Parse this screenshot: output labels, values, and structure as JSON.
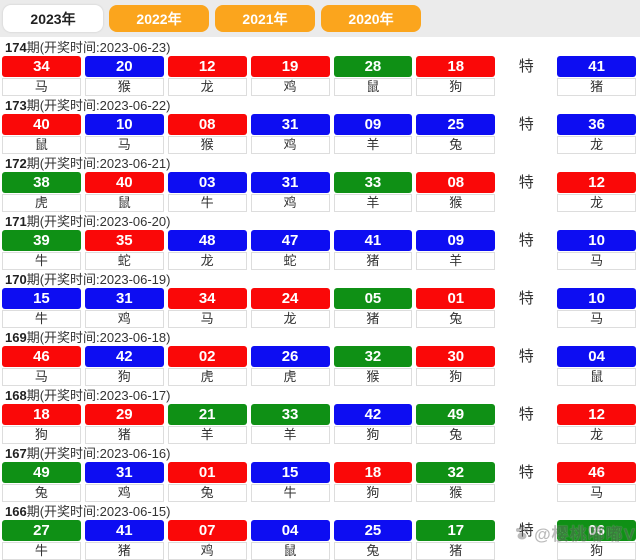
{
  "tabs": [
    {
      "label": "2023年",
      "active": true
    },
    {
      "label": "2022年",
      "active": false
    },
    {
      "label": "2021年",
      "active": false
    },
    {
      "label": "2020年",
      "active": false
    }
  ],
  "labels": {
    "special": "特"
  },
  "watermark": {
    "icon": "paw-icon",
    "text": "@樱桃嘟嘟V"
  },
  "theme": {
    "red": "#fa0808",
    "blue": "#0d0df2",
    "green": "#0f9015",
    "tab_orange": "#fba51d",
    "strip_bg": "#ebebeb"
  },
  "draws": [
    {
      "period": "174",
      "info": "期(开奖时间:2023-06-23)",
      "numbers": [
        {
          "value": "34",
          "color": "red",
          "zodiac": "马"
        },
        {
          "value": "20",
          "color": "blue",
          "zodiac": "猴"
        },
        {
          "value": "12",
          "color": "red",
          "zodiac": "龙"
        },
        {
          "value": "19",
          "color": "red",
          "zodiac": "鸡"
        },
        {
          "value": "28",
          "color": "green",
          "zodiac": "鼠"
        },
        {
          "value": "18",
          "color": "red",
          "zodiac": "狗"
        }
      ],
      "special": {
        "value": "41",
        "color": "blue",
        "zodiac": "猪"
      }
    },
    {
      "period": "173",
      "info": "期(开奖时间:2023-06-22)",
      "numbers": [
        {
          "value": "40",
          "color": "red",
          "zodiac": "鼠"
        },
        {
          "value": "10",
          "color": "blue",
          "zodiac": "马"
        },
        {
          "value": "08",
          "color": "red",
          "zodiac": "猴"
        },
        {
          "value": "31",
          "color": "blue",
          "zodiac": "鸡"
        },
        {
          "value": "09",
          "color": "blue",
          "zodiac": "羊"
        },
        {
          "value": "25",
          "color": "blue",
          "zodiac": "兔"
        }
      ],
      "special": {
        "value": "36",
        "color": "blue",
        "zodiac": "龙"
      }
    },
    {
      "period": "172",
      "info": "期(开奖时间:2023-06-21)",
      "numbers": [
        {
          "value": "38",
          "color": "green",
          "zodiac": "虎"
        },
        {
          "value": "40",
          "color": "red",
          "zodiac": "鼠"
        },
        {
          "value": "03",
          "color": "blue",
          "zodiac": "牛"
        },
        {
          "value": "31",
          "color": "blue",
          "zodiac": "鸡"
        },
        {
          "value": "33",
          "color": "green",
          "zodiac": "羊"
        },
        {
          "value": "08",
          "color": "red",
          "zodiac": "猴"
        }
      ],
      "special": {
        "value": "12",
        "color": "red",
        "zodiac": "龙"
      }
    },
    {
      "period": "171",
      "info": "期(开奖时间:2023-06-20)",
      "numbers": [
        {
          "value": "39",
          "color": "green",
          "zodiac": "牛"
        },
        {
          "value": "35",
          "color": "red",
          "zodiac": "蛇"
        },
        {
          "value": "48",
          "color": "blue",
          "zodiac": "龙"
        },
        {
          "value": "47",
          "color": "blue",
          "zodiac": "蛇"
        },
        {
          "value": "41",
          "color": "blue",
          "zodiac": "猪"
        },
        {
          "value": "09",
          "color": "blue",
          "zodiac": "羊"
        }
      ],
      "special": {
        "value": "10",
        "color": "blue",
        "zodiac": "马"
      }
    },
    {
      "period": "170",
      "info": "期(开奖时间:2023-06-19)",
      "numbers": [
        {
          "value": "15",
          "color": "blue",
          "zodiac": "牛"
        },
        {
          "value": "31",
          "color": "blue",
          "zodiac": "鸡"
        },
        {
          "value": "34",
          "color": "red",
          "zodiac": "马"
        },
        {
          "value": "24",
          "color": "red",
          "zodiac": "龙"
        },
        {
          "value": "05",
          "color": "green",
          "zodiac": "猪"
        },
        {
          "value": "01",
          "color": "red",
          "zodiac": "兔"
        }
      ],
      "special": {
        "value": "10",
        "color": "blue",
        "zodiac": "马"
      }
    },
    {
      "period": "169",
      "info": "期(开奖时间:2023-06-18)",
      "numbers": [
        {
          "value": "46",
          "color": "red",
          "zodiac": "马"
        },
        {
          "value": "42",
          "color": "blue",
          "zodiac": "狗"
        },
        {
          "value": "02",
          "color": "red",
          "zodiac": "虎"
        },
        {
          "value": "26",
          "color": "blue",
          "zodiac": "虎"
        },
        {
          "value": "32",
          "color": "green",
          "zodiac": "猴"
        },
        {
          "value": "30",
          "color": "red",
          "zodiac": "狗"
        }
      ],
      "special": {
        "value": "04",
        "color": "blue",
        "zodiac": "鼠"
      }
    },
    {
      "period": "168",
      "info": "期(开奖时间:2023-06-17)",
      "numbers": [
        {
          "value": "18",
          "color": "red",
          "zodiac": "狗"
        },
        {
          "value": "29",
          "color": "red",
          "zodiac": "猪"
        },
        {
          "value": "21",
          "color": "green",
          "zodiac": "羊"
        },
        {
          "value": "33",
          "color": "green",
          "zodiac": "羊"
        },
        {
          "value": "42",
          "color": "blue",
          "zodiac": "狗"
        },
        {
          "value": "49",
          "color": "green",
          "zodiac": "兔"
        }
      ],
      "special": {
        "value": "12",
        "color": "red",
        "zodiac": "龙"
      }
    },
    {
      "period": "167",
      "info": "期(开奖时间:2023-06-16)",
      "numbers": [
        {
          "value": "49",
          "color": "green",
          "zodiac": "兔"
        },
        {
          "value": "31",
          "color": "blue",
          "zodiac": "鸡"
        },
        {
          "value": "01",
          "color": "red",
          "zodiac": "兔"
        },
        {
          "value": "15",
          "color": "blue",
          "zodiac": "牛"
        },
        {
          "value": "18",
          "color": "red",
          "zodiac": "狗"
        },
        {
          "value": "32",
          "color": "green",
          "zodiac": "猴"
        }
      ],
      "special": {
        "value": "46",
        "color": "red",
        "zodiac": "马"
      }
    },
    {
      "period": "166",
      "info": "期(开奖时间:2023-06-15)",
      "numbers": [
        {
          "value": "27",
          "color": "green",
          "zodiac": "牛"
        },
        {
          "value": "41",
          "color": "blue",
          "zodiac": "猪"
        },
        {
          "value": "07",
          "color": "red",
          "zodiac": "鸡"
        },
        {
          "value": "04",
          "color": "blue",
          "zodiac": "鼠"
        },
        {
          "value": "25",
          "color": "blue",
          "zodiac": "兔"
        },
        {
          "value": "17",
          "color": "green",
          "zodiac": "猪"
        }
      ],
      "special": {
        "value": "06",
        "color": "green",
        "zodiac": "狗"
      }
    }
  ]
}
